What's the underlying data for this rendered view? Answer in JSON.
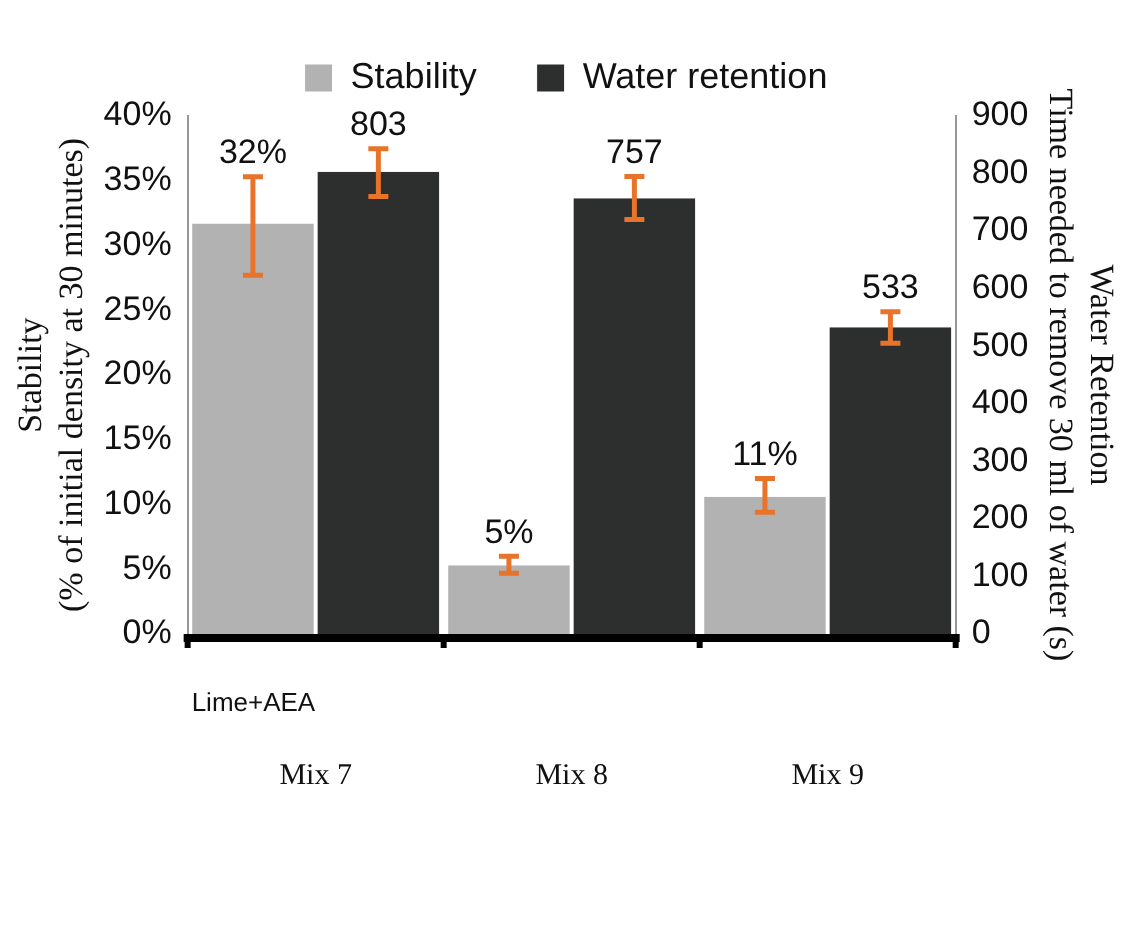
{
  "chart_data": {
    "type": "bar",
    "categories": [
      "Mix 7",
      "Mix 8",
      "Mix 9"
    ],
    "ylabel": "Stability\n(% of initial density at 30 minutes)",
    "y2label": "Water Retention\nTime needed to remove 30 ml of water (s)",
    "series": [
      {
        "name": "Stability",
        "color": "#b2b2b2",
        "values": [
          31.7,
          5.3,
          10.6
        ],
        "errors": [
          [
            27.7,
            35.3
          ],
          [
            4.7,
            6.0
          ],
          [
            9.4,
            12.0
          ]
        ],
        "value_labels": [
          "32%",
          "5%",
          "11%"
        ]
      },
      {
        "name": "Water retention",
        "color": "#2d2e2e",
        "axis": "y2",
        "values": [
          803,
          757,
          533
        ],
        "errors": [
          [
            760,
            843
          ],
          [
            720,
            795
          ],
          [
            505,
            560
          ]
        ],
        "value_labels": [
          "803",
          "757",
          "533"
        ]
      }
    ],
    "ylim": [
      0,
      40
    ],
    "yticks": [
      {
        "value": 0,
        "label": "0%"
      },
      {
        "value": 5,
        "label": "5%"
      },
      {
        "value": 10,
        "label": "10%"
      },
      {
        "value": 15,
        "label": "15%"
      },
      {
        "value": 20,
        "label": "20%"
      },
      {
        "value": 25,
        "label": "25%"
      },
      {
        "value": 30,
        "label": "30%"
      },
      {
        "value": 35,
        "label": "35%"
      },
      {
        "value": 40,
        "label": "40%"
      }
    ],
    "y2lim": [
      0,
      900
    ],
    "y2ticks": [
      0,
      100,
      200,
      300,
      400,
      500,
      600,
      700,
      800,
      900
    ],
    "annotations": [
      "Lime+AEA"
    ],
    "grid": false,
    "legend": "top"
  }
}
